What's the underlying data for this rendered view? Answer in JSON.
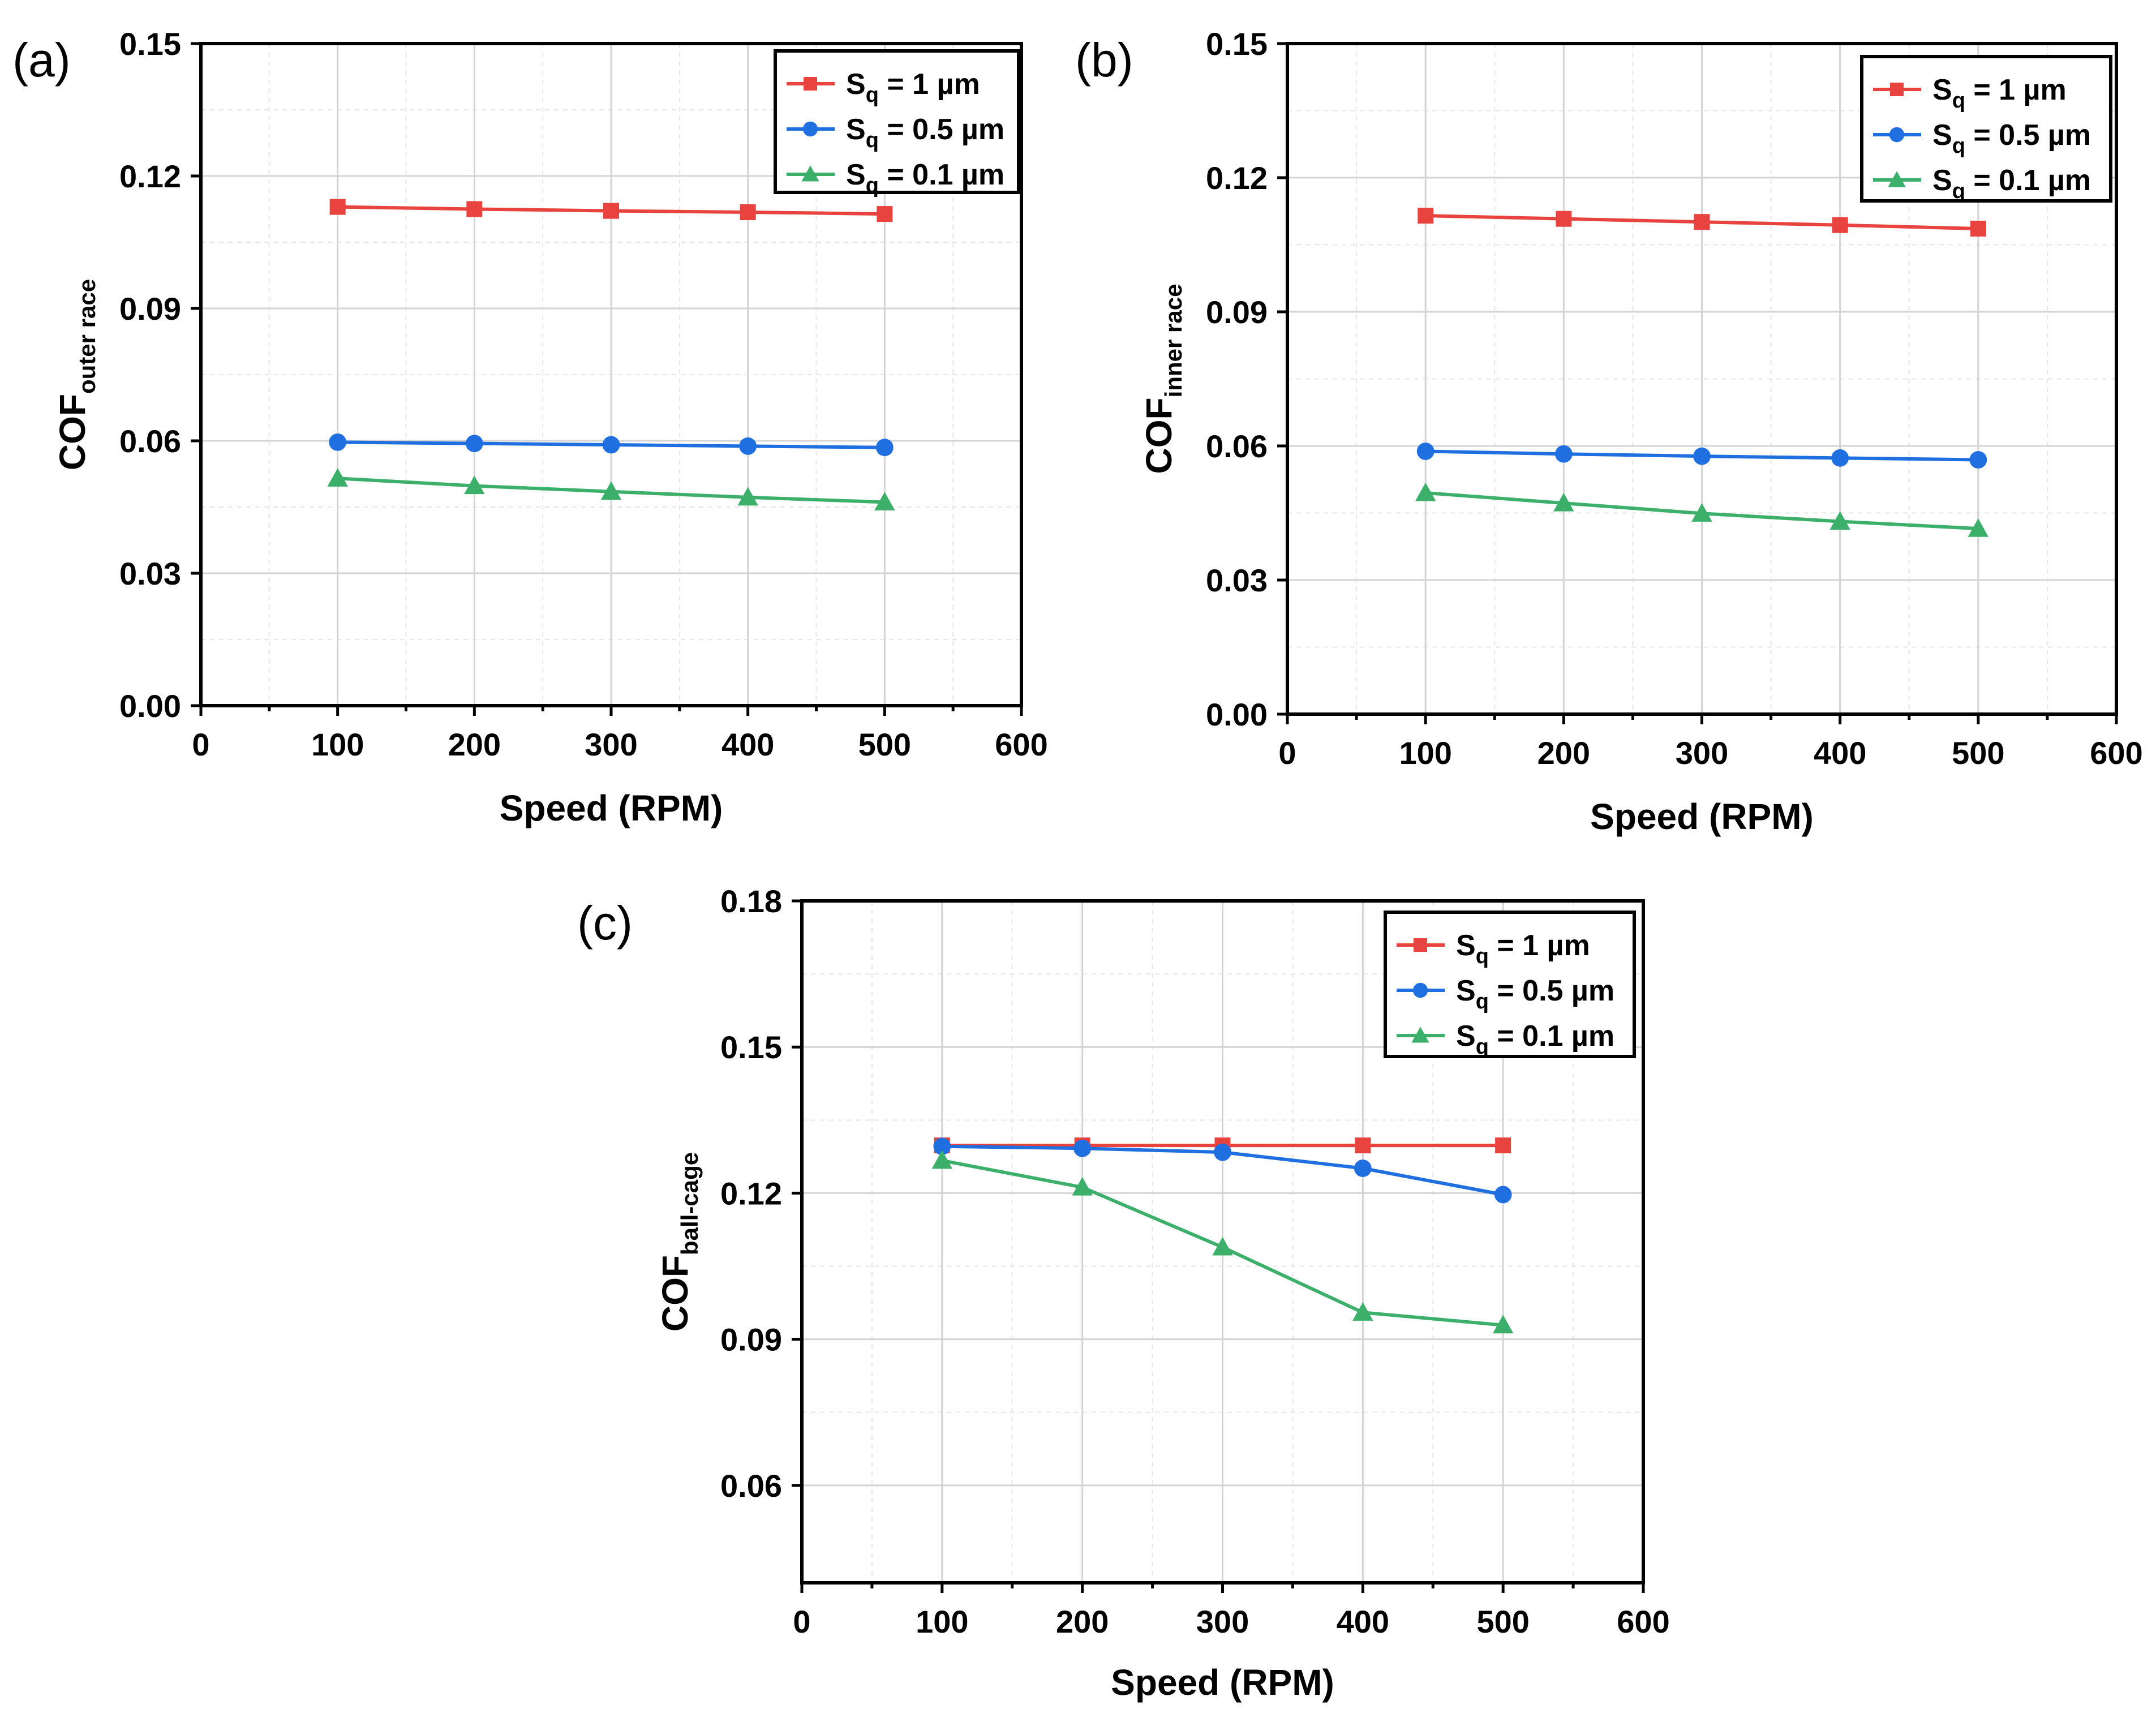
{
  "chart_data": [
    {
      "panel_label": "(a)",
      "type": "line",
      "xlabel": "Speed (RPM)",
      "ylabel": "COF",
      "ylabel_sub": "outer race",
      "xlim": [
        0,
        600
      ],
      "ylim": [
        0.0,
        0.15
      ],
      "xticks": [
        0,
        100,
        200,
        300,
        400,
        500,
        600
      ],
      "yticks": [
        0.0,
        0.03,
        0.06,
        0.09,
        0.12,
        0.15
      ],
      "ytick_labels": [
        "0.00",
        "0.03",
        "0.06",
        "0.09",
        "0.12",
        "0.15"
      ],
      "grid": true,
      "legend_position": "top-right",
      "x": [
        100,
        200,
        300,
        400,
        500
      ],
      "series": [
        {
          "name_main": "S",
          "name_sub": "q",
          "name_rest": " = 1 µm",
          "color": "#e8433e",
          "marker": "square",
          "values": [
            0.113,
            0.1125,
            0.1121,
            0.1118,
            0.1114
          ]
        },
        {
          "name_main": "S",
          "name_sub": "q",
          "name_rest": " = 0.5 µm",
          "color": "#1f6fe0",
          "marker": "circle",
          "values": [
            0.0597,
            0.0594,
            0.0591,
            0.0588,
            0.0585
          ]
        },
        {
          "name_main": "S",
          "name_sub": "q",
          "name_rest": " = 0.1 µm",
          "color": "#3cb06a",
          "marker": "triangle",
          "values": [
            0.0515,
            0.0498,
            0.0485,
            0.0472,
            0.0461
          ]
        }
      ]
    },
    {
      "panel_label": "(b)",
      "type": "line",
      "xlabel": "Speed (RPM)",
      "ylabel": "COF",
      "ylabel_sub": "inner race",
      "xlim": [
        0,
        600
      ],
      "ylim": [
        0.0,
        0.15
      ],
      "xticks": [
        0,
        100,
        200,
        300,
        400,
        500,
        600
      ],
      "yticks": [
        0.0,
        0.03,
        0.06,
        0.09,
        0.12,
        0.15
      ],
      "ytick_labels": [
        "0.00",
        "0.03",
        "0.06",
        "0.09",
        "0.12",
        "0.15"
      ],
      "grid": true,
      "legend_position": "top-right",
      "x": [
        100,
        200,
        300,
        400,
        500
      ],
      "series": [
        {
          "name_main": "S",
          "name_sub": "q",
          "name_rest": " = 1 µm",
          "color": "#e8433e",
          "marker": "square",
          "values": [
            0.1115,
            0.1108,
            0.1101,
            0.1094,
            0.1086
          ]
        },
        {
          "name_main": "S",
          "name_sub": "q",
          "name_rest": " = 0.5 µm",
          "color": "#1f6fe0",
          "marker": "circle",
          "values": [
            0.0588,
            0.0582,
            0.0577,
            0.0573,
            0.0569
          ]
        },
        {
          "name_main": "S",
          "name_sub": "q",
          "name_rest": " = 0.1 µm",
          "color": "#3cb06a",
          "marker": "triangle",
          "values": [
            0.0495,
            0.0472,
            0.0449,
            0.0431,
            0.0415
          ]
        }
      ]
    },
    {
      "panel_label": "(c)",
      "type": "line",
      "xlabel": "Speed (RPM)",
      "ylabel": "COF",
      "ylabel_sub": "ball-cage",
      "xlim": [
        0,
        600
      ],
      "ylim": [
        0.04,
        0.18
      ],
      "xticks": [
        0,
        100,
        200,
        300,
        400,
        500,
        600
      ],
      "yticks": [
        0.06,
        0.09,
        0.12,
        0.15,
        0.18
      ],
      "ytick_labels": [
        "0.06",
        "0.09",
        "0.12",
        "0.15",
        "0.18"
      ],
      "grid": true,
      "legend_position": "top-right",
      "x": [
        100,
        200,
        300,
        400,
        500
      ],
      "series": [
        {
          "name_main": "S",
          "name_sub": "q",
          "name_rest": " = 1 µm",
          "color": "#e8433e",
          "marker": "square",
          "values": [
            0.1298,
            0.1298,
            0.1298,
            0.1298,
            0.1298
          ]
        },
        {
          "name_main": "S",
          "name_sub": "q",
          "name_rest": " = 0.5 µm",
          "color": "#1f6fe0",
          "marker": "circle",
          "values": [
            0.1296,
            0.1292,
            0.1284,
            0.1251,
            0.1197
          ]
        },
        {
          "name_main": "S",
          "name_sub": "q",
          "name_rest": " = 0.1 µm",
          "color": "#3cb06a",
          "marker": "triangle",
          "values": [
            0.1267,
            0.1212,
            0.1089,
            0.0955,
            0.0929
          ]
        }
      ]
    }
  ]
}
